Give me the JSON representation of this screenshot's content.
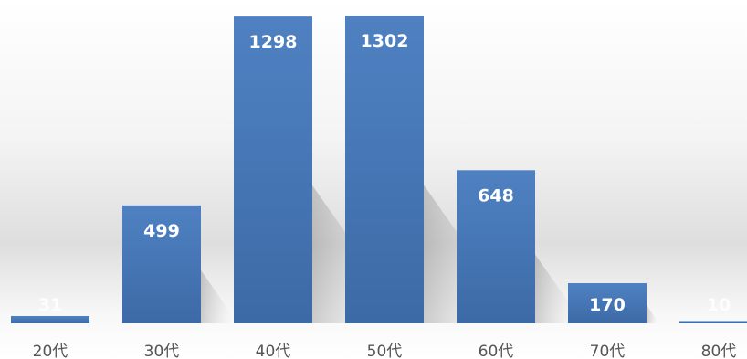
{
  "chart_data": {
    "type": "bar",
    "categories": [
      "20代",
      "30代",
      "40代",
      "50代",
      "60代",
      "70代",
      "80代"
    ],
    "values": [
      31,
      499,
      1298,
      1302,
      648,
      170,
      10
    ],
    "title": "",
    "xlabel": "",
    "ylabel": "",
    "ylim": [
      0,
      1310
    ],
    "grid": false,
    "legend": "none",
    "colors": {
      "bar_top": "#4f81c2",
      "bar_bottom": "#3c6aa6",
      "label": "#ffffff",
      "tick": "#555555"
    }
  }
}
